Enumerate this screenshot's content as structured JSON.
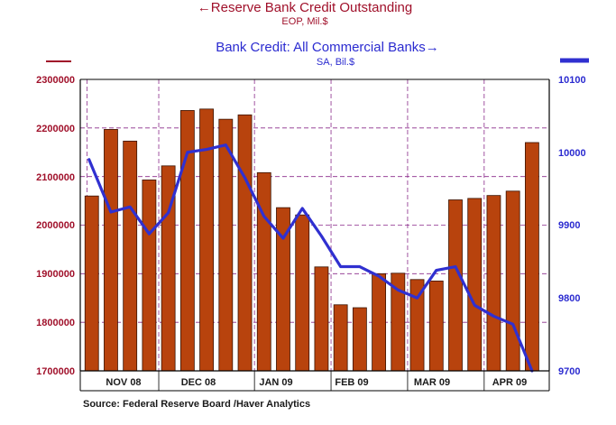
{
  "colors": {
    "bar": "#b8430d",
    "bar_edge": "#3a1200",
    "line": "#3030d0",
    "left_axis": "#a0102a",
    "right_axis": "#2b2bd0",
    "grid": "#8a2a8a"
  },
  "chart_data": {
    "type": "bar",
    "title_left": "←Reserve Bank Credit Outstanding",
    "subtitle_left": "EOP, Mil.$",
    "title_right": "Bank Credit: All Commercial Banks→",
    "subtitle_right": "SA, Bil.$",
    "source": "Source:  Federal Reserve Board /Haver Analytics",
    "x_labels": [
      "NOV 08",
      "DEC 08",
      "JAN 09",
      "FEB 09",
      "MAR 09",
      "APR 09"
    ],
    "left_axis": {
      "ylim": [
        1700000,
        2300000
      ],
      "ticks": [
        "1700000",
        "1800000",
        "1900000",
        "2000000",
        "2100000",
        "2200000",
        "2300000"
      ]
    },
    "right_axis": {
      "ylim": [
        9700,
        10100
      ],
      "ticks": [
        "9700",
        "9800",
        "9900",
        "10000",
        "10100"
      ]
    },
    "series": [
      {
        "name": "Reserve Bank Credit Outstanding",
        "type": "bar",
        "axis": "left",
        "values": [
          2060000,
          2197000,
          2173000,
          2093000,
          2122000,
          2236000,
          2239000,
          2218000,
          2227000,
          2108000,
          2036000,
          2021000,
          1914000,
          1836000,
          1830000,
          1900000,
          1901000,
          1888000,
          1885000,
          2052000,
          2055000,
          2061000,
          2070000,
          2170000
        ]
      },
      {
        "name": "Bank Credit: All Commercial Banks",
        "type": "line",
        "axis": "right",
        "values": [
          9990,
          9918,
          9925,
          9888,
          9917,
          10000,
          10004,
          10010,
          9965,
          9912,
          9882,
          9923,
          9885,
          9843,
          9843,
          9830,
          9811,
          9800,
          9838,
          9843,
          9790,
          9775,
          9764,
          9700
        ]
      }
    ]
  }
}
